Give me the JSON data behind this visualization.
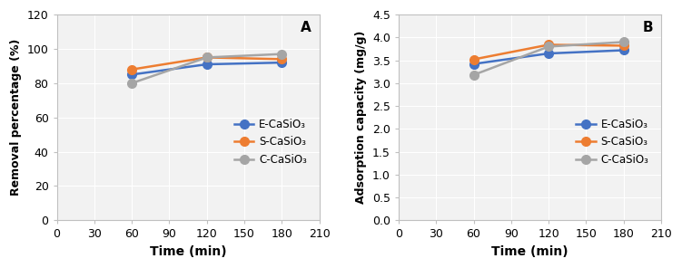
{
  "time": [
    60,
    120,
    180
  ],
  "panel_A": {
    "title": "A",
    "ylabel": "Removal percentage (%)",
    "xlabel": "Time (min)",
    "ylim": [
      0,
      120
    ],
    "yticks": [
      0,
      20,
      40,
      60,
      80,
      100,
      120
    ],
    "xlim": [
      0,
      210
    ],
    "xticks": [
      0,
      30,
      60,
      90,
      120,
      150,
      180,
      210
    ],
    "series": {
      "E-CaSiO₃": {
        "values": [
          85,
          91,
          92
        ],
        "color": "#4472C4",
        "marker": "o"
      },
      "S-CaSiO₃": {
        "values": [
          88,
          95,
          94
        ],
        "color": "#ED7D31",
        "marker": "o"
      },
      "C-CaSiO₃": {
        "values": [
          80,
          95,
          97
        ],
        "color": "#A5A5A5",
        "marker": "o"
      }
    }
  },
  "panel_B": {
    "title": "B",
    "ylabel": "Adsorption capacity (mg/g)",
    "xlabel": "Time (min)",
    "ylim": [
      0,
      4.5
    ],
    "yticks": [
      0,
      0.5,
      1.0,
      1.5,
      2.0,
      2.5,
      3.0,
      3.5,
      4.0,
      4.5
    ],
    "xlim": [
      0,
      210
    ],
    "xticks": [
      0,
      30,
      60,
      90,
      120,
      150,
      180,
      210
    ],
    "series": {
      "E-CaSiO₃": {
        "values": [
          3.42,
          3.65,
          3.72
        ],
        "color": "#4472C4",
        "marker": "o"
      },
      "S-CaSiO₃": {
        "values": [
          3.52,
          3.84,
          3.82
        ],
        "color": "#ED7D31",
        "marker": "o"
      },
      "C-CaSiO₃": {
        "values": [
          3.18,
          3.8,
          3.9
        ],
        "color": "#A5A5A5",
        "marker": "o"
      }
    }
  },
  "legend_order": [
    "E-CaSiO₃",
    "S-CaSiO₃",
    "C-CaSiO₃"
  ],
  "line_width": 1.8,
  "marker_size": 7,
  "ax_facecolor": "#f2f2f2",
  "grid_color": "#ffffff",
  "spine_color": "#c0c0c0"
}
